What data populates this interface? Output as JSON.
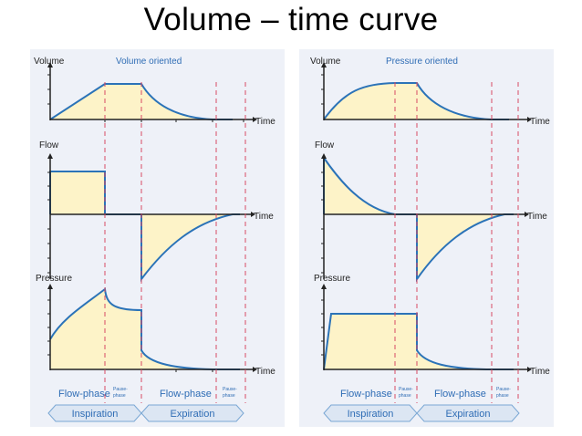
{
  "title": "Volume – time curve",
  "panels": [
    {
      "subtitle": "Volume oriented",
      "labels": {
        "volume": "Volume",
        "flow": "Flow",
        "pressure": "Pressure",
        "time": "Time",
        "flow_phase": "Flow-phase",
        "pause_phase_line1": "Pause-",
        "pause_phase_line2": "phase",
        "inspiration": "Inspiration",
        "expiration": "Expiration"
      }
    },
    {
      "subtitle": "Pressure oriented",
      "labels": {
        "volume": "Volume",
        "flow": "Flow",
        "pressure": "Pressure",
        "time": "Time",
        "flow_phase": "Flow-phase",
        "pause_phase_line1": "Pause-",
        "pause_phase_line2": "phase",
        "inspiration": "Inspiration",
        "expiration": "Expiration"
      }
    }
  ],
  "colors": {
    "fill": "#fdf3c8",
    "curve": "#2b73b8",
    "dashed": "#d84a64",
    "text_blue": "#2f6db5",
    "panel_bg": "#eef1f8"
  }
}
